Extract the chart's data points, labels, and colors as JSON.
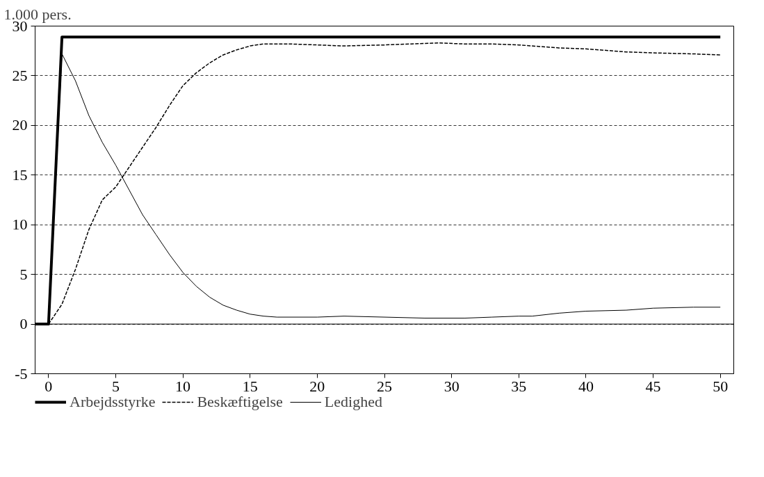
{
  "chart_data": {
    "type": "line",
    "ylabel": "1.000 pers.",
    "xlim": [
      -1,
      51
    ],
    "xticks": [
      0,
      5,
      10,
      15,
      20,
      25,
      30,
      35,
      40,
      45,
      50
    ],
    "ylim": [
      -5,
      30
    ],
    "yticks": [
      -5,
      0,
      5,
      10,
      15,
      20,
      25,
      30
    ],
    "grid": "y",
    "legend": "bottom",
    "ref_lines": [
      {
        "axis": "y",
        "value": 0,
        "line_style": "solid",
        "color": "#000000"
      }
    ],
    "series": [
      {
        "name": "Arbejdsstyrke",
        "color": "#000000",
        "line_style": "solid",
        "x": [
          -1,
          0,
          1,
          50
        ],
        "values": [
          0,
          0,
          28.9,
          28.9
        ]
      },
      {
        "name": "Beskæftigelse",
        "color": "#000000",
        "line_style": "dashed",
        "x": [
          0,
          1,
          2,
          3,
          4,
          5,
          6,
          7,
          8,
          9,
          10,
          11,
          12,
          13,
          14,
          15,
          16,
          18,
          20,
          22,
          25,
          27,
          29,
          31,
          33,
          35,
          38,
          40,
          43,
          45,
          48,
          50
        ],
        "values": [
          0,
          2,
          5.5,
          9.5,
          12.5,
          13.8,
          15.8,
          17.8,
          19.8,
          22,
          24,
          25.3,
          26.3,
          27.1,
          27.6,
          28,
          28.2,
          28.2,
          28.1,
          28,
          28.1,
          28.2,
          28.3,
          28.2,
          28.2,
          28.1,
          27.8,
          27.7,
          27.4,
          27.3,
          27.2,
          27.1
        ]
      },
      {
        "name": "Ledighed",
        "color": "#000000",
        "line_style": "solid",
        "x": [
          -1,
          0,
          1,
          2,
          3,
          4,
          5,
          6,
          7,
          8,
          9,
          10,
          11,
          12,
          13,
          14,
          15,
          16,
          17,
          20,
          22,
          25,
          28,
          31,
          33,
          35,
          36,
          38,
          40,
          43,
          45,
          48,
          50
        ],
        "values": [
          0,
          0,
          27.2,
          24.5,
          21,
          18.3,
          16,
          13.5,
          11,
          9,
          7,
          5.2,
          3.8,
          2.7,
          1.9,
          1.4,
          1,
          0.8,
          0.7,
          0.7,
          0.8,
          0.7,
          0.6,
          0.6,
          0.7,
          0.8,
          0.8,
          1.1,
          1.3,
          1.4,
          1.6,
          1.7,
          1.7
        ]
      }
    ]
  }
}
